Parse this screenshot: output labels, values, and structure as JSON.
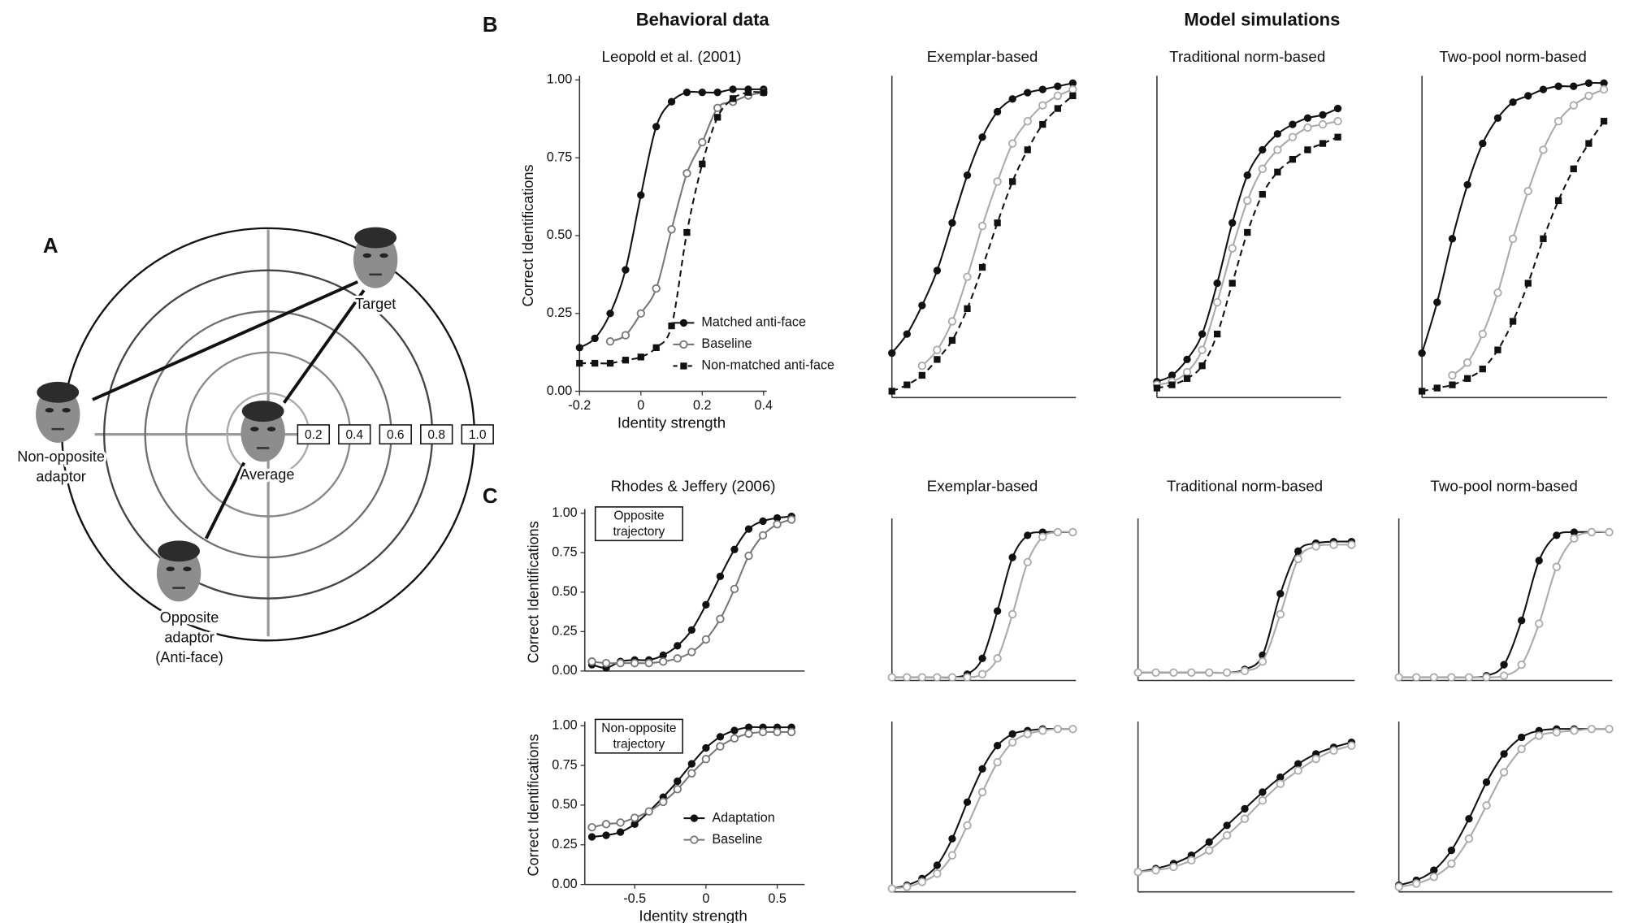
{
  "panels": {
    "b": "B",
    "c": "C"
  },
  "headings": [
    "Behavioral data",
    "Model simulations"
  ],
  "panel_a": {
    "label": "A",
    "faces": [
      {
        "label": [
          "Target"
        ]
      },
      {
        "label": [
          "Non-opposite",
          "adaptor"
        ]
      },
      {
        "label": [
          "Average"
        ]
      },
      {
        "label": [
          "Opposite",
          "adaptor",
          "(Anti-face)"
        ]
      }
    ],
    "scale": [
      "0.2",
      "0.4",
      "0.6",
      "0.8",
      "1.0"
    ]
  },
  "chart_data": [
    {
      "type": "line",
      "title": "Leopold et al. (2001)",
      "xlabel": "Identity strength",
      "ylabel": "Correct Identifications",
      "x": [
        -0.2,
        -0.15,
        -0.1,
        -0.05,
        0,
        0.05,
        0.1,
        0.15,
        0.2,
        0.25,
        0.3,
        0.35,
        0.4
      ],
      "xlim": [
        -0.2,
        0.4
      ],
      "xticks": [
        -0.2,
        0,
        0.2,
        0.4
      ],
      "ylim": [
        0,
        1
      ],
      "yticks": [
        {
          "value": 0,
          "label": "0.00"
        },
        0.25,
        {
          "value": 0.5,
          "label": "0.50"
        },
        0.75,
        {
          "value": 1,
          "label": "1.00"
        }
      ],
      "legend": "lower right",
      "series": [
        {
          "name": "Matched anti-face",
          "color": "#111111",
          "marker": "filled-circle",
          "line_style": "solid",
          "values": [
            0.14,
            0.17,
            0.25,
            0.39,
            0.63,
            0.85,
            0.93,
            0.96,
            0.96,
            0.96,
            0.97,
            0.97,
            0.97
          ]
        },
        {
          "name": "Baseline",
          "color": "#777777",
          "marker": "open-circle",
          "line_style": "solid",
          "values": [
            null,
            null,
            0.16,
            0.18,
            0.25,
            0.33,
            0.52,
            0.7,
            0.8,
            0.91,
            0.93,
            0.95,
            0.96
          ]
        },
        {
          "name": "Non-matched anti-face",
          "color": "#111111",
          "marker": "filled-square",
          "line_style": "dashed",
          "values": [
            0.09,
            0.09,
            0.09,
            0.1,
            0.11,
            0.14,
            0.21,
            0.51,
            0.73,
            0.88,
            0.94,
            0.96,
            0.96
          ]
        }
      ]
    },
    {
      "type": "line",
      "title": "Exemplar-based",
      "ylim": [
        0,
        1
      ],
      "series": [
        {
          "color": "#111111",
          "marker": "filled-circle",
          "line_style": "solid",
          "values": [
            0.14,
            0.2,
            0.29,
            0.4,
            0.55,
            0.7,
            0.82,
            0.9,
            0.94,
            0.96,
            0.97,
            0.98,
            0.99
          ]
        },
        {
          "color": "#aaaaaa",
          "marker": "open-circle",
          "line_style": "solid",
          "values": [
            null,
            null,
            0.1,
            0.15,
            0.24,
            0.38,
            0.54,
            0.68,
            0.8,
            0.87,
            0.92,
            0.95,
            0.97
          ]
        },
        {
          "color": "#111111",
          "marker": "filled-square",
          "line_style": "dashed",
          "values": [
            0.02,
            0.04,
            0.07,
            0.12,
            0.18,
            0.28,
            0.41,
            0.55,
            0.68,
            0.78,
            0.86,
            0.91,
            0.95
          ]
        }
      ]
    },
    {
      "type": "line",
      "title": "Traditional norm-based",
      "ylim": [
        0,
        1
      ],
      "series": [
        {
          "color": "#111111",
          "marker": "filled-circle",
          "line_style": "solid",
          "values": [
            0.05,
            0.07,
            0.12,
            0.2,
            0.36,
            0.55,
            0.7,
            0.78,
            0.83,
            0.86,
            0.88,
            0.89,
            0.91
          ]
        },
        {
          "color": "#aaaaaa",
          "marker": "open-circle",
          "line_style": "solid",
          "values": [
            0.04,
            0.05,
            0.08,
            0.15,
            0.3,
            0.47,
            0.62,
            0.72,
            0.78,
            0.82,
            0.85,
            0.86,
            0.87
          ]
        },
        {
          "color": "#111111",
          "marker": "filled-square",
          "line_style": "dashed",
          "values": [
            0.03,
            0.04,
            0.06,
            0.1,
            0.2,
            0.36,
            0.52,
            0.64,
            0.71,
            0.75,
            0.78,
            0.8,
            0.82
          ]
        }
      ]
    },
    {
      "type": "line",
      "title": "Two-pool norm-based",
      "ylim": [
        0,
        1
      ],
      "series": [
        {
          "color": "#111111",
          "marker": "filled-circle",
          "line_style": "solid",
          "values": [
            0.14,
            0.3,
            0.5,
            0.67,
            0.8,
            0.88,
            0.93,
            0.95,
            0.97,
            0.98,
            0.98,
            0.99,
            0.99
          ]
        },
        {
          "color": "#aaaaaa",
          "marker": "open-circle",
          "line_style": "solid",
          "values": [
            null,
            null,
            0.07,
            0.11,
            0.2,
            0.33,
            0.5,
            0.65,
            0.78,
            0.87,
            0.92,
            0.95,
            0.97
          ]
        },
        {
          "color": "#111111",
          "marker": "filled-square",
          "line_style": "dashed",
          "values": [
            0.02,
            0.03,
            0.04,
            0.06,
            0.09,
            0.15,
            0.24,
            0.36,
            0.5,
            0.62,
            0.72,
            0.8,
            0.87
          ]
        }
      ]
    },
    {
      "type": "line",
      "title": "Rhodes & Jeffery (2006)",
      "ylabel": "Correct Identifications",
      "annotation": [
        "Opposite",
        "trajectory"
      ],
      "x": [
        -0.8,
        -0.7,
        -0.6,
        -0.5,
        -0.4,
        -0.3,
        -0.2,
        -0.1,
        0,
        0.1,
        0.2,
        0.3,
        0.4,
        0.5,
        0.6
      ],
      "xlim": [
        -0.85,
        0.67
      ],
      "ylim": [
        0,
        1
      ],
      "yticks": [
        {
          "value": 0,
          "label": "0.00"
        },
        0.25,
        {
          "value": 0.5,
          "label": "0.50"
        },
        0.75,
        {
          "value": 1,
          "label": "1.00"
        }
      ],
      "series": [
        {
          "color": "#111111",
          "marker": "filled-circle",
          "line_style": "solid",
          "values": [
            0.04,
            0.02,
            0.06,
            0.07,
            0.07,
            0.1,
            0.16,
            0.26,
            0.42,
            0.6,
            0.77,
            0.9,
            0.95,
            0.97,
            0.98
          ]
        },
        {
          "color": "#777777",
          "marker": "open-circle",
          "line_style": "solid",
          "values": [
            0.06,
            0.05,
            0.05,
            0.05,
            0.05,
            0.06,
            0.08,
            0.12,
            0.2,
            0.33,
            0.52,
            0.73,
            0.86,
            0.93,
            0.96
          ]
        }
      ]
    },
    {
      "type": "line",
      "title": "Exemplar-based",
      "ylim": [
        0,
        1
      ],
      "series": [
        {
          "color": "#111111",
          "marker": "filled-circle",
          "line_style": "solid",
          "values": [
            0.02,
            0.02,
            0.02,
            0.02,
            0.02,
            0.04,
            0.14,
            0.44,
            0.78,
            0.92,
            0.94,
            0.94,
            0.94
          ]
        },
        {
          "color": "#aaaaaa",
          "marker": "open-circle",
          "line_style": "solid",
          "values": [
            0.02,
            0.02,
            0.02,
            0.02,
            0.02,
            0.02,
            0.04,
            0.14,
            0.42,
            0.75,
            0.91,
            0.94,
            0.94
          ]
        }
      ]
    },
    {
      "type": "line",
      "title": "Traditional norm-based",
      "ylim": [
        0,
        1
      ],
      "series": [
        {
          "color": "#111111",
          "marker": "filled-circle",
          "line_style": "solid",
          "values": [
            0.05,
            0.05,
            0.05,
            0.05,
            0.05,
            0.05,
            0.07,
            0.16,
            0.55,
            0.82,
            0.87,
            0.88,
            0.88
          ]
        },
        {
          "color": "#aaaaaa",
          "marker": "open-circle",
          "line_style": "solid",
          "values": [
            0.05,
            0.05,
            0.05,
            0.05,
            0.05,
            0.05,
            0.06,
            0.12,
            0.42,
            0.77,
            0.85,
            0.86,
            0.86
          ]
        }
      ]
    },
    {
      "type": "line",
      "title": "Two-pool norm-based",
      "ylim": [
        0,
        1
      ],
      "series": [
        {
          "color": "#111111",
          "marker": "filled-circle",
          "line_style": "solid",
          "values": [
            0.02,
            0.02,
            0.02,
            0.02,
            0.02,
            0.03,
            0.1,
            0.38,
            0.76,
            0.92,
            0.94,
            0.94,
            0.94
          ]
        },
        {
          "color": "#aaaaaa",
          "marker": "open-circle",
          "line_style": "solid",
          "values": [
            0.02,
            0.02,
            0.02,
            0.02,
            0.02,
            0.02,
            0.03,
            0.1,
            0.36,
            0.72,
            0.9,
            0.94,
            0.94
          ]
        }
      ]
    },
    {
      "type": "line",
      "xlabel": "Identity strength",
      "ylabel": "Correct Identifications",
      "annotation": [
        "Non-opposite",
        "trajectory"
      ],
      "x": [
        -0.8,
        -0.7,
        -0.6,
        -0.5,
        -0.4,
        -0.3,
        -0.2,
        -0.1,
        0,
        0.1,
        0.2,
        0.3,
        0.4,
        0.5,
        0.6
      ],
      "xlim": [
        -0.85,
        0.67
      ],
      "xticks": [
        -0.5,
        0,
        0.5
      ],
      "ylim": [
        0,
        1
      ],
      "yticks": [
        {
          "value": 0,
          "label": "0.00"
        },
        0.25,
        {
          "value": 0.5,
          "label": "0.50"
        },
        0.75,
        {
          "value": 1,
          "label": "1.00"
        }
      ],
      "legend": "lower right",
      "series": [
        {
          "name": "Adaptation",
          "color": "#111111",
          "marker": "filled-circle",
          "line_style": "solid",
          "values": [
            0.3,
            0.31,
            0.33,
            0.38,
            0.46,
            0.55,
            0.65,
            0.76,
            0.86,
            0.93,
            0.97,
            0.99,
            0.99,
            0.99,
            0.99
          ]
        },
        {
          "name": "Baseline",
          "color": "#777777",
          "marker": "open-circle",
          "line_style": "solid",
          "values": [
            0.36,
            0.38,
            0.39,
            0.42,
            0.46,
            0.52,
            0.6,
            0.7,
            0.79,
            0.87,
            0.92,
            0.95,
            0.96,
            0.96,
            0.96
          ]
        }
      ]
    },
    {
      "type": "line",
      "ylim": [
        0,
        1
      ],
      "series": [
        {
          "color": "#111111",
          "marker": "filled-circle",
          "line_style": "solid",
          "values": [
            0.02,
            0.04,
            0.08,
            0.16,
            0.32,
            0.54,
            0.74,
            0.88,
            0.95,
            0.97,
            0.98,
            0.98,
            0.98
          ]
        },
        {
          "color": "#aaaaaa",
          "marker": "open-circle",
          "line_style": "solid",
          "values": [
            0.02,
            0.03,
            0.06,
            0.11,
            0.22,
            0.4,
            0.6,
            0.78,
            0.9,
            0.95,
            0.97,
            0.98,
            0.98
          ]
        }
      ]
    },
    {
      "type": "line",
      "ylim": [
        0,
        1
      ],
      "series": [
        {
          "color": "#111111",
          "marker": "filled-circle",
          "line_style": "solid",
          "values": [
            0.12,
            0.14,
            0.17,
            0.22,
            0.3,
            0.4,
            0.5,
            0.6,
            0.69,
            0.77,
            0.83,
            0.87,
            0.9
          ]
        },
        {
          "color": "#aaaaaa",
          "marker": "open-circle",
          "line_style": "solid",
          "values": [
            0.12,
            0.13,
            0.15,
            0.19,
            0.25,
            0.34,
            0.44,
            0.55,
            0.65,
            0.73,
            0.8,
            0.85,
            0.88
          ]
        }
      ]
    },
    {
      "type": "line",
      "ylim": [
        0,
        1
      ],
      "series": [
        {
          "color": "#111111",
          "marker": "filled-circle",
          "line_style": "solid",
          "values": [
            0.04,
            0.07,
            0.13,
            0.25,
            0.44,
            0.66,
            0.83,
            0.93,
            0.97,
            0.98,
            0.98,
            0.98,
            0.98
          ]
        },
        {
          "color": "#aaaaaa",
          "marker": "open-circle",
          "line_style": "solid",
          "values": [
            0.03,
            0.05,
            0.09,
            0.17,
            0.32,
            0.52,
            0.72,
            0.86,
            0.94,
            0.96,
            0.97,
            0.98,
            0.98
          ]
        }
      ]
    }
  ]
}
